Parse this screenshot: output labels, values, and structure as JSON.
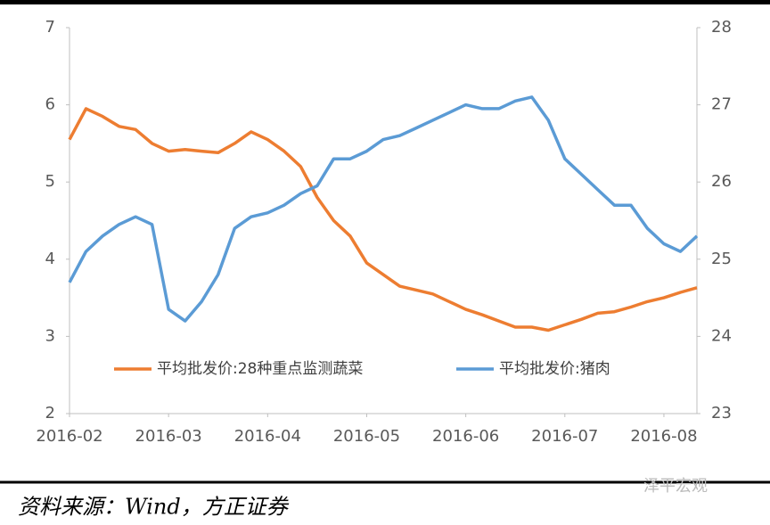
{
  "chart_data": {
    "type": "line",
    "categories": [
      "2016-02",
      null,
      null,
      null,
      null,
      null,
      "2016-03",
      null,
      null,
      null,
      null,
      null,
      "2016-04",
      null,
      null,
      null,
      null,
      null,
      "2016-05",
      null,
      null,
      null,
      null,
      null,
      "2016-06",
      null,
      null,
      null,
      null,
      null,
      "2016-07",
      null,
      null,
      null,
      null,
      null,
      "2016-08",
      null,
      null
    ],
    "series": [
      {
        "name": "平均批发价:28种重点监测蔬菜",
        "color": "#ed7d31",
        "values": [
          5.55,
          5.95,
          5.85,
          5.72,
          5.68,
          5.5,
          5.4,
          5.42,
          5.4,
          5.38,
          5.5,
          5.65,
          5.55,
          5.4,
          5.2,
          4.8,
          4.5,
          4.3,
          3.95,
          3.8,
          3.65,
          3.6,
          3.55,
          3.45,
          3.35,
          3.28,
          3.2,
          3.12,
          3.12,
          3.08,
          3.15,
          3.22,
          3.3,
          3.32,
          3.38,
          3.45,
          3.5,
          3.57,
          3.63
        ]
      },
      {
        "name": "平均批发价:猪肉",
        "color": "#5b9bd5",
        "axis": "y2",
        "values": [
          24.7,
          25.1,
          25.3,
          25.45,
          25.55,
          25.45,
          24.35,
          24.2,
          24.45,
          24.8,
          25.4,
          25.55,
          25.6,
          25.7,
          25.85,
          25.95,
          26.3,
          26.3,
          26.4,
          26.55,
          26.6,
          26.7,
          26.8,
          26.9,
          27.0,
          26.95,
          26.95,
          27.05,
          27.1,
          26.8,
          26.3,
          26.1,
          25.9,
          25.7,
          25.7,
          25.4,
          25.2,
          25.1,
          25.3
        ]
      }
    ],
    "ylim": [
      2,
      7
    ],
    "yticks": [
      2,
      3,
      4,
      5,
      6,
      7
    ],
    "y2lim": [
      23,
      28
    ],
    "y2ticks": [
      23,
      24,
      25,
      26,
      27,
      28
    ],
    "grid": false,
    "source": "资料来源：Wind，方正证券",
    "watermark": "泽平宏观"
  }
}
